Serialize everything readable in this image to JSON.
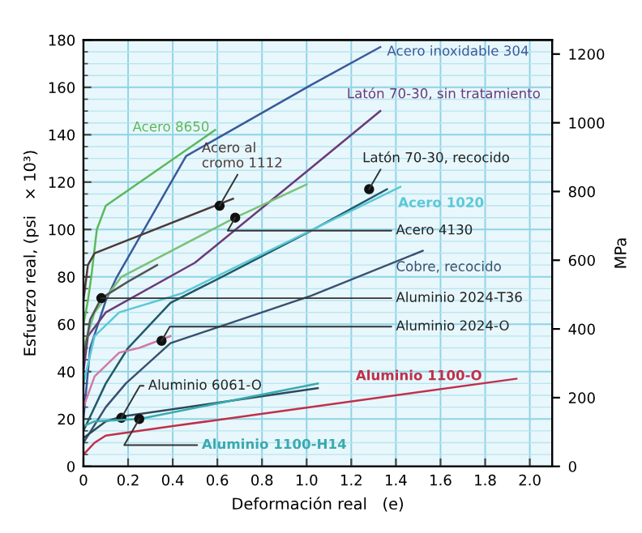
{
  "chart_data": {
    "type": "line",
    "xlabel": "Deformación real   (e)",
    "ylabel": "Esfuerzo real, (psi   × 10³)",
    "y2label": "MPa",
    "xlim": [
      0,
      2.1
    ],
    "xticks": [
      0,
      0.2,
      0.4,
      0.6,
      0.8,
      {
        "value": 1,
        "label": "1.0"
      },
      1.2,
      1.4,
      1.6,
      1.8,
      {
        "value": 2,
        "label": "2.0"
      }
    ],
    "ylim": [
      0,
      180
    ],
    "yticks": [
      0,
      20,
      40,
      60,
      80,
      100,
      120,
      140,
      160,
      180
    ],
    "y2lim": [
      0,
      1241
    ],
    "y2ticks": [
      0,
      200,
      400,
      600,
      800,
      1000,
      1200
    ],
    "grid": true,
    "legend": false,
    "marker": "none",
    "line_style": "solid",
    "series": [
      {
        "name": "Acero inoxidable 304",
        "color": "#3a5a9a",
        "x": [
          0,
          0.03,
          0.1,
          0.15,
          0.46,
          1.02,
          1.33
        ],
        "values": [
          20,
          50,
          70,
          80,
          131,
          161,
          177
        ]
      },
      {
        "name": "Latón 70-30, sin tratamiento",
        "color": "#6a3a7a",
        "x": [
          0,
          0.02,
          0.1,
          0.5,
          1.02,
          1.33
        ],
        "values": [
          40,
          55,
          65,
          86,
          126,
          150
        ]
      },
      {
        "name": "Latón 70-30, recocido",
        "color": "#1f5a6a",
        "x": [
          0,
          0.1,
          0.2,
          0.39,
          0.62,
          1.02,
          1.36
        ],
        "values": [
          15,
          35,
          50,
          69,
          80,
          99.5,
          117
        ]
      },
      {
        "name": "Acero 1020",
        "color": "#5bc8d8",
        "x": [
          0,
          0.05,
          0.16,
          0.44,
          1.42
        ],
        "values": [
          35,
          55,
          65,
          73,
          118
        ]
      },
      {
        "name": "Acero 4130",
        "color": "#7ac27a",
        "x": [
          0,
          0.05,
          0.17,
          0.68,
          1.0
        ],
        "values": [
          50,
          65,
          80,
          105,
          119
        ]
      },
      {
        "name": "Cobre, recocido",
        "color": "#3a5070",
        "x": [
          0,
          0.1,
          0.19,
          0.39,
          1.02,
          1.52
        ],
        "values": [
          10,
          25,
          35,
          52,
          72,
          91
        ]
      },
      {
        "name": "Aluminio 2024-T36",
        "color": "#555555",
        "x": [
          0,
          0.03,
          0.08,
          0.2,
          0.33
        ],
        "values": [
          45,
          62,
          71,
          78,
          85
        ]
      },
      {
        "name": "Aluminio 2024-O",
        "color": "#d07aa8",
        "x": [
          0,
          0.05,
          0.16,
          0.25,
          0.39
        ],
        "values": [
          25,
          38,
          48,
          50,
          55
        ]
      },
      {
        "name": "Aluminio 1100-O",
        "color": "#c0304a",
        "x": [
          0,
          0.05,
          0.1,
          0.4,
          1.94
        ],
        "values": [
          5,
          10,
          13,
          17,
          37
        ]
      },
      {
        "name": "Aluminio 6061-O",
        "color": "#2a4a5a",
        "x": [
          0,
          0.1,
          0.17,
          1.05
        ],
        "values": [
          12,
          19,
          21,
          33
        ]
      },
      {
        "name": "Aluminio 1100-H14",
        "color": "#3aaab0",
        "x": [
          0,
          0.05,
          0.25,
          1.05
        ],
        "values": [
          17,
          19,
          20,
          35
        ]
      },
      {
        "name": "Acero 8650",
        "color": "#5cb85c",
        "x": [
          0,
          0.02,
          0.035,
          0.06,
          0.1,
          0.59
        ],
        "values": [
          60,
          70,
          80,
          100,
          110,
          142
        ]
      },
      {
        "name": "Acero al\ncromo 1112",
        "color": "#4a3a3a",
        "x": [
          0,
          0.02,
          0.05,
          0.67
        ],
        "values": [
          70,
          85,
          90,
          113
        ]
      }
    ]
  }
}
